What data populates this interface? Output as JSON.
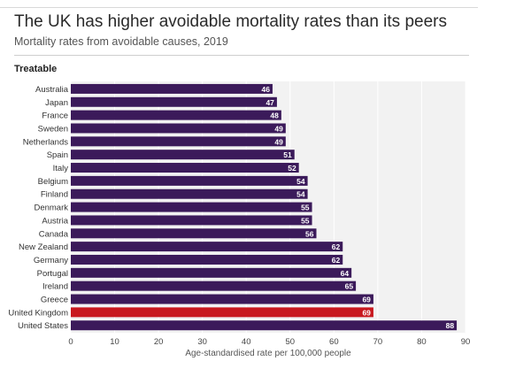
{
  "header": {
    "title": "The UK has higher avoidable mortality rates than its peers",
    "subtitle": "Mortality rates from avoidable causes, 2019"
  },
  "chart_data": {
    "type": "bar",
    "orientation": "horizontal",
    "panel_label": "Treatable",
    "categories": [
      "Australia",
      "Japan",
      "France",
      "Sweden",
      "Netherlands",
      "Spain",
      "Italy",
      "Belgium",
      "Finland",
      "Denmark",
      "Austria",
      "Canada",
      "New Zealand",
      "Germany",
      "Portugal",
      "Ireland",
      "Greece",
      "United Kingdom",
      "United States"
    ],
    "values": [
      46,
      47,
      48,
      49,
      49,
      51,
      52,
      54,
      54,
      55,
      55,
      56,
      62,
      62,
      64,
      65,
      69,
      69,
      88
    ],
    "highlight": "United Kingdom",
    "xlabel": "Age-standardised rate per 100,000 people",
    "xlim": [
      0,
      90
    ],
    "xticks": [
      0,
      10,
      20,
      30,
      40,
      50,
      60,
      70,
      80,
      90
    ],
    "grid": true,
    "colors": {
      "bar": "#3b1a5a",
      "highlight": "#c8191f",
      "label": "#ffffff",
      "panel": "#f2f2f2",
      "grid": "#ffffff"
    }
  }
}
